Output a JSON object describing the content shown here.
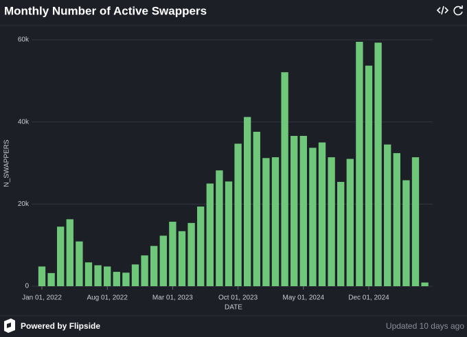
{
  "header": {
    "title": "Monthly Number of Active Swappers"
  },
  "footer": {
    "brand": "Powered by Flipside",
    "updated": "Updated 10 days ago"
  },
  "chart_data": {
    "type": "bar",
    "x_label": "DATE",
    "y_label": "N_SWAPPERS",
    "categories": [
      "Jan 01, 2022",
      null,
      null,
      null,
      null,
      null,
      null,
      "Aug 01, 2022",
      null,
      null,
      null,
      null,
      null,
      null,
      "Mar 01, 2023",
      null,
      null,
      null,
      null,
      null,
      null,
      "Oct 01, 2023",
      null,
      null,
      null,
      null,
      null,
      null,
      "May 01, 2024",
      null,
      null,
      null,
      null,
      null,
      null,
      "Dec 01, 2024",
      null,
      null,
      null,
      null,
      null,
      null
    ],
    "values": [
      4800,
      3200,
      14500,
      16300,
      10900,
      5800,
      5100,
      4800,
      3500,
      3300,
      5300,
      7500,
      9800,
      12300,
      15700,
      13400,
      15400,
      19400,
      25000,
      28200,
      25500,
      34700,
      41200,
      37600,
      31200,
      31400,
      52100,
      36600,
      36600,
      33700,
      35000,
      31400,
      25400,
      31000,
      59500,
      53700,
      59300,
      34500,
      32400,
      25800,
      31400,
      900
    ],
    "color": "#6fc77a",
    "ylim": [
      0,
      63000
    ],
    "yticks": [
      0,
      {
        "value": 20000,
        "label": "20k"
      },
      {
        "value": 40000,
        "label": "40k"
      },
      {
        "value": 60000,
        "label": "60k"
      }
    ],
    "grid": true
  }
}
